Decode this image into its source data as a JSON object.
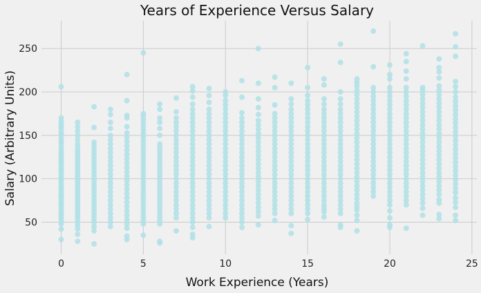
{
  "chart_data": {
    "type": "scatter",
    "title": "Years of Experience Versus Salary",
    "xlabel": "Work Experience (Years)",
    "ylabel": "Salary (Arbitrary Units)",
    "xlim": [
      -1.2,
      25.3
    ],
    "ylim": [
      13,
      282
    ],
    "xticks": [
      0,
      5,
      10,
      15,
      20,
      25
    ],
    "yticks": [
      50,
      100,
      150,
      200,
      250
    ],
    "grid": true,
    "legend": "none",
    "point_color": "#b0e0e6",
    "background_color": "#f0f0f0",
    "grid_color": "#cbcbcb",
    "series": [
      {
        "columns": [
          {
            "x": 0,
            "min": 30,
            "max": 206,
            "points": [
              30,
              42,
              48,
              52,
              55,
              58,
              60,
              62,
              65,
              68,
              70,
              72,
              75,
              78,
              80,
              82,
              85,
              88,
              90,
              92,
              95,
              98,
              100,
              102,
              105,
              108,
              110,
              112,
              115,
              118,
              120,
              122,
              125,
              128,
              130,
              133,
              136,
              140,
              143,
              146,
              150,
              153,
              157,
              160,
              163,
              166,
              170,
              206
            ]
          },
          {
            "x": 1,
            "min": 28,
            "max": 165,
            "points": [
              28,
              36,
              42,
              46,
              50,
              54,
              57,
              60,
              63,
              66,
              69,
              72,
              75,
              78,
              81,
              84,
              87,
              90,
              93,
              96,
              99,
              102,
              105,
              108,
              111,
              114,
              117,
              120,
              123,
              126,
              129,
              132,
              136,
              140,
              145,
              150,
              155,
              160,
              165
            ]
          },
          {
            "x": 2,
            "min": 25,
            "max": 183,
            "points": [
              25,
              40,
              45,
              50,
              54,
              58,
              62,
              66,
              70,
              74,
              78,
              82,
              86,
              90,
              94,
              98,
              102,
              106,
              110,
              114,
              118,
              122,
              126,
              130,
              134,
              138,
              142,
              159,
              183
            ]
          },
          {
            "x": 3,
            "min": 45,
            "max": 180,
            "points": [
              45,
              50,
              55,
              60,
              65,
              70,
              75,
              80,
              85,
              90,
              95,
              100,
              105,
              110,
              115,
              120,
              125,
              130,
              135,
              140,
              145,
              150,
              158,
              165,
              174,
              180
            ]
          },
          {
            "x": 4,
            "min": 30,
            "max": 220,
            "points": [
              30,
              34,
              43,
              48,
              53,
              58,
              63,
              68,
              73,
              78,
              83,
              88,
              93,
              98,
              103,
              108,
              113,
              118,
              123,
              128,
              133,
              138,
              143,
              148,
              153,
              160,
              170,
              173,
              190,
              220
            ]
          },
          {
            "x": 5,
            "min": 35,
            "max": 245,
            "points": [
              35,
              48,
              52,
              56,
              60,
              64,
              68,
              72,
              76,
              80,
              84,
              88,
              92,
              96,
              100,
              104,
              108,
              112,
              116,
              120,
              124,
              128,
              132,
              136,
              140,
              144,
              148,
              152,
              156,
              160,
              164,
              168,
              172,
              175,
              245
            ]
          },
          {
            "x": 6,
            "min": 26,
            "max": 186,
            "points": [
              26,
              28,
              48,
              52,
              56,
              60,
              64,
              68,
              72,
              76,
              80,
              84,
              88,
              92,
              96,
              100,
              104,
              108,
              112,
              116,
              120,
              124,
              128,
              132,
              136,
              140,
              150,
              158,
              165,
              170,
              180,
              186
            ]
          },
          {
            "x": 7,
            "min": 40,
            "max": 193,
            "points": [
              40,
              55,
              60,
              65,
              70,
              75,
              80,
              85,
              90,
              95,
              100,
              105,
              110,
              115,
              120,
              125,
              130,
              135,
              140,
              145,
              150,
              155,
              160,
              165,
              170,
              177,
              193
            ]
          },
          {
            "x": 8,
            "min": 32,
            "max": 206,
            "points": [
              32,
              36,
              44,
              50,
              55,
              60,
              65,
              70,
              75,
              80,
              85,
              90,
              95,
              100,
              105,
              110,
              115,
              120,
              125,
              130,
              135,
              140,
              145,
              150,
              155,
              160,
              165,
              170,
              175,
              180,
              186,
              194,
              201,
              206
            ]
          },
          {
            "x": 9,
            "min": 45,
            "max": 204,
            "points": [
              45,
              55,
              60,
              65,
              70,
              75,
              80,
              85,
              90,
              95,
              100,
              105,
              110,
              115,
              120,
              125,
              130,
              135,
              140,
              145,
              150,
              155,
              160,
              165,
              170,
              175,
              180,
              188,
              196,
              204
            ]
          },
          {
            "x": 10,
            "min": 55,
            "max": 200,
            "points": [
              55,
              60,
              65,
              70,
              75,
              80,
              85,
              90,
              95,
              100,
              105,
              110,
              115,
              120,
              125,
              130,
              135,
              140,
              145,
              150,
              155,
              160,
              165,
              170,
              175,
              180,
              185,
              190,
              196,
              200
            ]
          },
          {
            "x": 11,
            "min": 44,
            "max": 213,
            "points": [
              44,
              50,
              55,
              60,
              65,
              70,
              75,
              80,
              85,
              90,
              95,
              100,
              105,
              110,
              115,
              120,
              125,
              130,
              135,
              140,
              145,
              150,
              155,
              160,
              165,
              170,
              176,
              194,
              213
            ]
          },
          {
            "x": 12,
            "min": 47,
            "max": 250,
            "points": [
              47,
              57,
              62,
              67,
              72,
              77,
              82,
              87,
              92,
              97,
              102,
              107,
              112,
              117,
              122,
              127,
              132,
              137,
              142,
              147,
              152,
              157,
              162,
              167,
              174,
              182,
              192,
              210,
              250
            ]
          },
          {
            "x": 13,
            "min": 52,
            "max": 217,
            "points": [
              52,
              60,
              65,
              70,
              75,
              80,
              85,
              90,
              95,
              100,
              105,
              110,
              115,
              120,
              125,
              130,
              135,
              140,
              145,
              150,
              155,
              160,
              165,
              170,
              175,
              185,
              205,
              217
            ]
          },
          {
            "x": 14,
            "min": 37,
            "max": 210,
            "points": [
              37,
              46,
              60,
              65,
              70,
              75,
              80,
              85,
              90,
              95,
              100,
              105,
              110,
              115,
              120,
              125,
              130,
              135,
              140,
              145,
              150,
              155,
              160,
              165,
              170,
              175,
              180,
              186,
              192,
              210
            ]
          },
          {
            "x": 15,
            "min": 53,
            "max": 228,
            "points": [
              53,
              60,
              65,
              70,
              75,
              80,
              85,
              90,
              95,
              100,
              105,
              110,
              115,
              120,
              125,
              130,
              135,
              140,
              145,
              150,
              155,
              160,
              165,
              170,
              175,
              180,
              185,
              190,
              196,
              205,
              228
            ]
          },
          {
            "x": 16,
            "min": 56,
            "max": 215,
            "points": [
              56,
              62,
              66,
              70,
              75,
              80,
              85,
              90,
              95,
              100,
              105,
              110,
              115,
              120,
              125,
              130,
              135,
              140,
              145,
              150,
              155,
              160,
              165,
              170,
              175,
              180,
              186,
              192,
              208,
              215
            ]
          },
          {
            "x": 17,
            "min": 44,
            "max": 255,
            "points": [
              44,
              47,
              60,
              65,
              70,
              75,
              80,
              85,
              90,
              95,
              100,
              105,
              110,
              115,
              120,
              125,
              130,
              135,
              140,
              145,
              150,
              155,
              160,
              165,
              170,
              175,
              180,
              186,
              192,
              200,
              234,
              255
            ]
          },
          {
            "x": 18,
            "min": 40,
            "max": 215,
            "points": [
              40,
              52,
              58,
              64,
              68,
              72,
              77,
              82,
              87,
              92,
              97,
              102,
              107,
              112,
              117,
              122,
              127,
              132,
              137,
              142,
              147,
              152,
              157,
              162,
              167,
              172,
              177,
              182,
              187,
              192,
              197,
              202,
              207,
              211,
              215
            ]
          },
          {
            "x": 19,
            "min": 80,
            "max": 270,
            "points": [
              80,
              85,
              90,
              95,
              100,
              105,
              110,
              115,
              120,
              125,
              130,
              135,
              140,
              145,
              150,
              155,
              160,
              165,
              170,
              175,
              180,
              185,
              190,
              195,
              200,
              205,
              229,
              270
            ]
          },
          {
            "x": 20,
            "min": 44,
            "max": 231,
            "points": [
              44,
              47,
              55,
              63,
              70,
              75,
              80,
              85,
              90,
              95,
              100,
              105,
              110,
              115,
              120,
              125,
              130,
              135,
              140,
              145,
              150,
              155,
              160,
              165,
              170,
              175,
              180,
              185,
              190,
              195,
              200,
              205,
              215,
              220,
              231
            ]
          },
          {
            "x": 21,
            "min": 43,
            "max": 244,
            "points": [
              43,
              70,
              75,
              80,
              85,
              90,
              95,
              100,
              105,
              110,
              115,
              120,
              125,
              130,
              135,
              140,
              145,
              150,
              155,
              160,
              165,
              170,
              175,
              180,
              185,
              190,
              195,
              200,
              205,
              215,
              224,
              235,
              244
            ]
          },
          {
            "x": 22,
            "min": 58,
            "max": 253,
            "points": [
              58,
              66,
              72,
              77,
              82,
              87,
              92,
              97,
              102,
              107,
              112,
              117,
              122,
              127,
              132,
              137,
              142,
              147,
              152,
              157,
              162,
              167,
              172,
              177,
              182,
              187,
              192,
              197,
              202,
              205,
              253
            ]
          },
          {
            "x": 23,
            "min": 54,
            "max": 238,
            "points": [
              54,
              59,
              72,
              76,
              82,
              87,
              92,
              97,
              102,
              107,
              112,
              117,
              122,
              127,
              132,
              137,
              142,
              147,
              152,
              157,
              162,
              167,
              172,
              177,
              182,
              187,
              192,
              197,
              202,
              207,
              216,
              223,
              228,
              238
            ]
          },
          {
            "x": 24,
            "min": 52,
            "max": 267,
            "points": [
              52,
              58,
              67,
              73,
              78,
              84,
              89,
              94,
              99,
              104,
              109,
              114,
              119,
              124,
              129,
              134,
              139,
              144,
              149,
              154,
              159,
              164,
              169,
              174,
              179,
              184,
              189,
              194,
              200,
              206,
              212,
              241,
              252,
              267
            ]
          }
        ]
      }
    ]
  }
}
